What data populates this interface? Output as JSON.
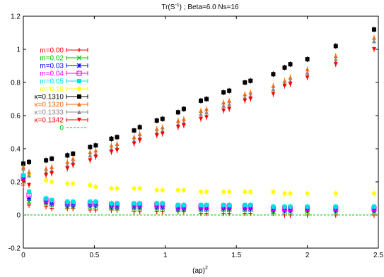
{
  "chart_data": {
    "type": "scatter",
    "title": "Tr(S^-1) ; Beta=6.0 Ns=16",
    "title_parts": {
      "before": "Tr(S",
      "sup": "-1",
      "after": ") ; Beta=6.0 Ns=16"
    },
    "xlabel_base": "(ap)",
    "xlabel_sup": "2",
    "xlim": [
      0,
      2.5
    ],
    "ylim": [
      -0.2,
      1.2
    ],
    "xticks": [
      "0",
      "0.5",
      "1",
      "1.5",
      "2",
      "2.5"
    ],
    "yticks": [
      "-0.2",
      "0",
      "0.2",
      "0.4",
      "0.6",
      "0.8",
      "1",
      "1.2"
    ],
    "legend_position": "top-left",
    "x": [
      0.0,
      0.04,
      0.16,
      0.2,
      0.31,
      0.35,
      0.47,
      0.51,
      0.62,
      0.66,
      0.78,
      0.82,
      0.94,
      0.98,
      1.09,
      1.13,
      1.25,
      1.29,
      1.41,
      1.45,
      1.56,
      1.6,
      1.76,
      1.84,
      1.88,
      2.0,
      2.2,
      2.47
    ],
    "series": [
      {
        "name": "m=0.00",
        "color": "#ff0000",
        "marker": "plus",
        "values": [
          0.18,
          0.06,
          0.05,
          0.04,
          0.04,
          0.04,
          0.03,
          0.03,
          0.03,
          0.03,
          0.02,
          0.02,
          0.02,
          0.02,
          0.02,
          0.02,
          0.01,
          0.01,
          0.01,
          0.01,
          0.01,
          0.01,
          0.01,
          0.0,
          0.0,
          0.0,
          0.0,
          0.0
        ]
      },
      {
        "name": "m=0.02",
        "color": "#00c000",
        "marker": "cross",
        "values": [
          0.2,
          0.08,
          0.07,
          0.06,
          0.05,
          0.05,
          0.05,
          0.05,
          0.04,
          0.04,
          0.04,
          0.04,
          0.04,
          0.04,
          0.03,
          0.03,
          0.03,
          0.03,
          0.03,
          0.03,
          0.03,
          0.03,
          0.02,
          0.02,
          0.02,
          0.02,
          0.02,
          0.02
        ]
      },
      {
        "name": "m=0.03",
        "color": "#0000ff",
        "marker": "star",
        "values": [
          0.22,
          0.1,
          0.08,
          0.07,
          0.06,
          0.06,
          0.06,
          0.06,
          0.05,
          0.05,
          0.05,
          0.05,
          0.05,
          0.05,
          0.04,
          0.04,
          0.04,
          0.04,
          0.04,
          0.04,
          0.04,
          0.04,
          0.03,
          0.03,
          0.03,
          0.03,
          0.03,
          0.03
        ]
      },
      {
        "name": "m=0.04",
        "color": "#ff00ff",
        "marker": "box",
        "values": [
          0.23,
          0.12,
          0.09,
          0.08,
          0.07,
          0.07,
          0.07,
          0.07,
          0.06,
          0.06,
          0.06,
          0.06,
          0.06,
          0.06,
          0.05,
          0.05,
          0.05,
          0.05,
          0.05,
          0.05,
          0.05,
          0.05,
          0.04,
          0.04,
          0.04,
          0.04,
          0.04,
          0.04
        ]
      },
      {
        "name": "m=0.05",
        "color": "#00e0e0",
        "marker": "fbox",
        "values": [
          0.24,
          0.14,
          0.1,
          0.09,
          0.08,
          0.08,
          0.08,
          0.08,
          0.07,
          0.07,
          0.07,
          0.07,
          0.07,
          0.07,
          0.06,
          0.06,
          0.06,
          0.06,
          0.06,
          0.06,
          0.06,
          0.06,
          0.05,
          0.05,
          0.05,
          0.05,
          0.05,
          0.05
        ]
      },
      {
        "name": "m=0.10",
        "color": "#ffff00",
        "marker": "fcircle",
        "values": [
          0.3,
          0.24,
          0.21,
          0.2,
          0.19,
          0.19,
          0.18,
          0.17,
          0.16,
          0.16,
          0.16,
          0.16,
          0.15,
          0.15,
          0.15,
          0.15,
          0.14,
          0.14,
          0.14,
          0.14,
          0.14,
          0.14,
          0.14,
          0.13,
          0.13,
          0.13,
          0.13,
          0.13
        ]
      },
      {
        "name": "κ=0.1310",
        "color": "#000000",
        "marker": "fsquare",
        "values": [
          0.31,
          0.32,
          0.33,
          0.34,
          0.36,
          0.37,
          0.41,
          0.42,
          0.46,
          0.47,
          0.51,
          0.53,
          0.57,
          0.58,
          0.62,
          0.64,
          0.69,
          0.7,
          0.74,
          0.75,
          0.8,
          0.81,
          0.85,
          0.89,
          0.91,
          0.94,
          1.02,
          1.12
        ]
      },
      {
        "name": "κ=0.1320",
        "color": "#ff6600",
        "marker": "triangle",
        "values": [
          0.29,
          0.26,
          0.28,
          0.29,
          0.32,
          0.34,
          0.38,
          0.39,
          0.42,
          0.43,
          0.47,
          0.49,
          0.52,
          0.53,
          0.57,
          0.58,
          0.63,
          0.64,
          0.68,
          0.69,
          0.73,
          0.74,
          0.78,
          0.81,
          0.83,
          0.88,
          0.96,
          1.07
        ]
      },
      {
        "name": "κ=0.1333",
        "color": "#888888",
        "marker": "triangle",
        "values": [
          0.28,
          0.24,
          0.26,
          0.27,
          0.3,
          0.32,
          0.36,
          0.37,
          0.4,
          0.41,
          0.45,
          0.47,
          0.5,
          0.51,
          0.55,
          0.56,
          0.61,
          0.62,
          0.66,
          0.67,
          0.71,
          0.72,
          0.76,
          0.79,
          0.81,
          0.86,
          0.94,
          1.05
        ]
      },
      {
        "name": "κ=0.1342",
        "color": "#ff0000",
        "marker": "itriangle",
        "values": [
          0.2,
          0.18,
          0.24,
          0.25,
          0.28,
          0.3,
          0.33,
          0.35,
          0.38,
          0.39,
          0.43,
          0.45,
          0.48,
          0.49,
          0.53,
          0.54,
          0.58,
          0.59,
          0.63,
          0.64,
          0.69,
          0.7,
          0.73,
          0.78,
          0.79,
          0.83,
          0.91,
          1.0
        ]
      },
      {
        "name": "0",
        "color": "#00c000",
        "marker": "line",
        "values": [
          0,
          0
        ]
      }
    ]
  }
}
